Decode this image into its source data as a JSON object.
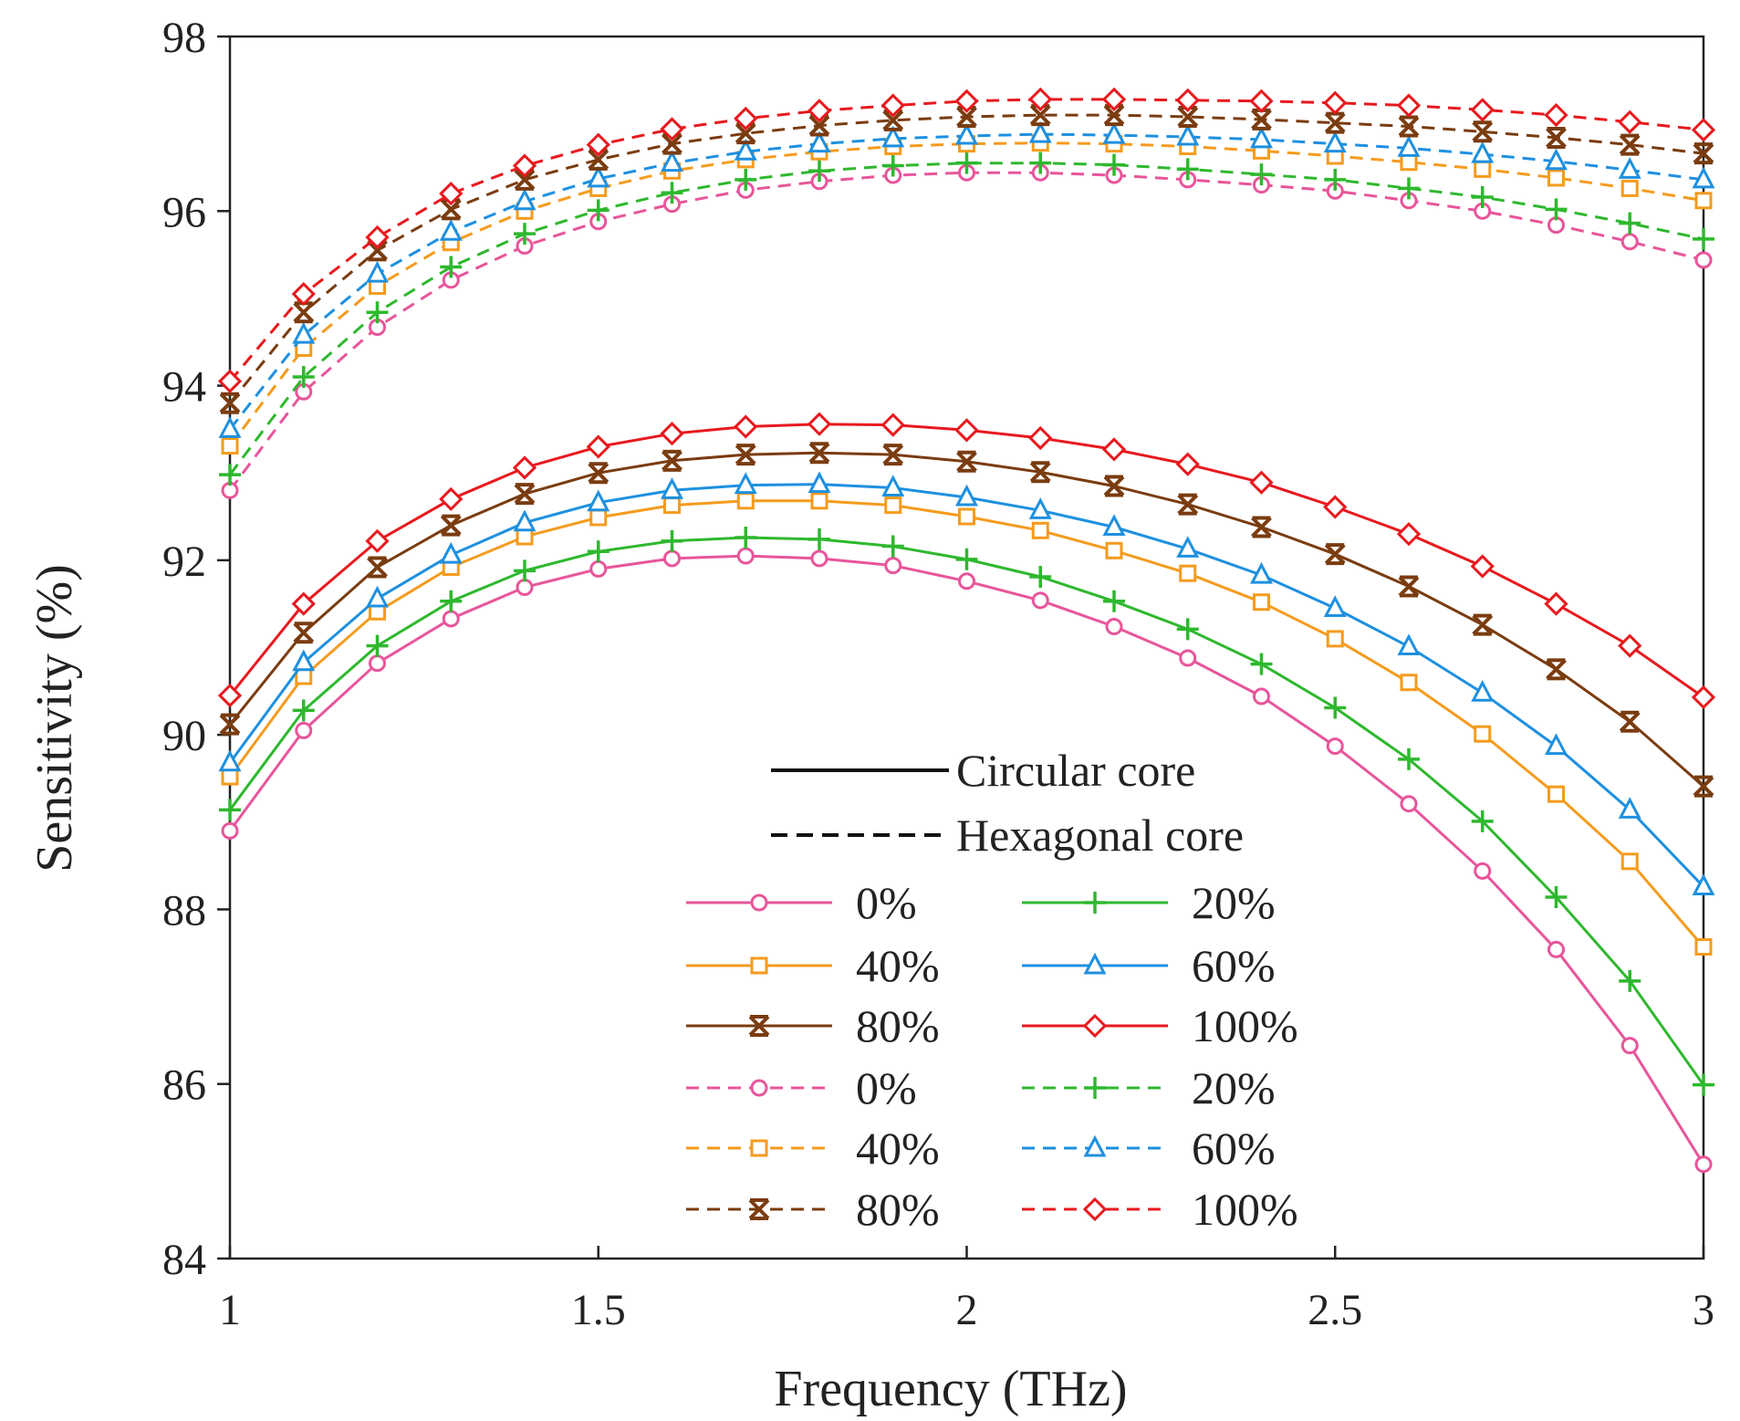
{
  "chart_data": {
    "type": "line",
    "title": "",
    "xlabel": "Frequency (THz)",
    "ylabel": "Sensitivity (%)",
    "xlim": [
      1,
      3
    ],
    "ylim": [
      84,
      98
    ],
    "xticks": [
      1,
      1.5,
      2,
      2.5,
      3
    ],
    "xtick_labels": [
      "1",
      "1.5",
      "2",
      "2.5",
      "3"
    ],
    "yticks": [
      84,
      86,
      88,
      90,
      92,
      94,
      96,
      98
    ],
    "ytick_labels": [
      "84",
      "86",
      "88",
      "90",
      "92",
      "94",
      "96",
      "98"
    ],
    "grid": false,
    "x": [
      1.0,
      1.1,
      1.2,
      1.3,
      1.4,
      1.5,
      1.6,
      1.7,
      1.8,
      1.9,
      2.0,
      2.1,
      2.2,
      2.3,
      2.4,
      2.5,
      2.6,
      2.7,
      2.8,
      2.9,
      3.0
    ],
    "legend": {
      "placement": "bottom-right",
      "style_entries": [
        {
          "label": "Circular core",
          "dash": "solid"
        },
        {
          "label": "Hexagonal core",
          "dash": "dashed"
        }
      ]
    },
    "series": [
      {
        "name": "0%",
        "core": "Circular core",
        "dash": "solid",
        "marker": "circle",
        "color": "#e8559a",
        "values": [
          88.9,
          90.05,
          90.82,
          91.33,
          91.69,
          91.9,
          92.02,
          92.05,
          92.02,
          91.94,
          91.76,
          91.54,
          91.24,
          90.88,
          90.44,
          89.87,
          89.21,
          88.44,
          87.54,
          86.44,
          85.08
        ]
      },
      {
        "name": "20%",
        "core": "Circular core",
        "dash": "solid",
        "marker": "plus",
        "color": "#2eb82e",
        "values": [
          89.14,
          90.28,
          91.02,
          91.53,
          91.88,
          92.1,
          92.22,
          92.26,
          92.24,
          92.16,
          92.01,
          91.81,
          91.53,
          91.21,
          90.81,
          90.31,
          89.72,
          89.01,
          88.14,
          87.18,
          85.99
        ]
      },
      {
        "name": "40%",
        "core": "Circular core",
        "dash": "solid",
        "marker": "square",
        "color": "#f59b1e",
        "values": [
          89.52,
          90.67,
          91.41,
          91.92,
          92.27,
          92.49,
          92.63,
          92.68,
          92.68,
          92.63,
          92.5,
          92.34,
          92.11,
          91.85,
          91.52,
          91.1,
          90.6,
          90.01,
          89.32,
          88.55,
          87.57
        ]
      },
      {
        "name": "60%",
        "core": "Circular core",
        "dash": "solid",
        "marker": "triangle",
        "color": "#1e90e0",
        "values": [
          89.68,
          90.83,
          91.56,
          92.06,
          92.43,
          92.66,
          92.8,
          92.86,
          92.87,
          92.83,
          92.72,
          92.57,
          92.38,
          92.13,
          91.83,
          91.45,
          91.01,
          90.48,
          89.87,
          89.14,
          88.26
        ]
      },
      {
        "name": "80%",
        "core": "Circular core",
        "dash": "solid",
        "marker": "star",
        "color": "#7a3c10",
        "values": [
          90.12,
          91.17,
          91.92,
          92.4,
          92.76,
          93.0,
          93.14,
          93.21,
          93.23,
          93.21,
          93.13,
          93.01,
          92.85,
          92.64,
          92.38,
          92.07,
          91.7,
          91.26,
          90.75,
          90.15,
          89.41
        ]
      },
      {
        "name": "100%",
        "core": "Circular core",
        "dash": "solid",
        "marker": "diamond",
        "color": "#e8191e",
        "values": [
          90.45,
          91.5,
          92.22,
          92.7,
          93.06,
          93.3,
          93.45,
          93.53,
          93.56,
          93.55,
          93.49,
          93.4,
          93.27,
          93.1,
          92.89,
          92.61,
          92.3,
          91.93,
          91.5,
          91.02,
          90.43
        ]
      },
      {
        "name": "0%",
        "core": "Hexagonal core",
        "dash": "dashed",
        "marker": "circle",
        "color": "#e8559a",
        "values": [
          92.8,
          93.93,
          94.67,
          95.21,
          95.6,
          95.88,
          96.08,
          96.24,
          96.34,
          96.41,
          96.44,
          96.44,
          96.41,
          96.36,
          96.3,
          96.23,
          96.12,
          96.0,
          95.84,
          95.65,
          95.44
        ]
      },
      {
        "name": "20%",
        "core": "Hexagonal core",
        "dash": "dashed",
        "marker": "plus",
        "color": "#2eb82e",
        "values": [
          92.98,
          94.1,
          94.84,
          95.36,
          95.74,
          96.01,
          96.21,
          96.36,
          96.46,
          96.52,
          96.55,
          96.55,
          96.53,
          96.48,
          96.42,
          96.36,
          96.26,
          96.16,
          96.02,
          95.86,
          95.68
        ]
      },
      {
        "name": "40%",
        "core": "Hexagonal core",
        "dash": "dashed",
        "marker": "square",
        "color": "#f59b1e",
        "values": [
          93.31,
          94.43,
          95.14,
          95.64,
          96.0,
          96.26,
          96.46,
          96.59,
          96.68,
          96.74,
          96.77,
          96.78,
          96.77,
          96.74,
          96.69,
          96.63,
          96.56,
          96.48,
          96.38,
          96.26,
          96.12
        ]
      },
      {
        "name": "60%",
        "core": "Hexagonal core",
        "dash": "dashed",
        "marker": "triangle",
        "color": "#1e90e0",
        "values": [
          93.5,
          94.58,
          95.28,
          95.76,
          96.11,
          96.37,
          96.55,
          96.68,
          96.77,
          96.83,
          96.86,
          96.88,
          96.87,
          96.85,
          96.82,
          96.77,
          96.72,
          96.65,
          96.57,
          96.47,
          96.36
        ]
      },
      {
        "name": "80%",
        "core": "Hexagonal core",
        "dash": "dashed",
        "marker": "star",
        "color": "#7a3c10",
        "values": [
          93.8,
          94.84,
          95.55,
          96.02,
          96.36,
          96.59,
          96.77,
          96.89,
          96.98,
          97.04,
          97.08,
          97.1,
          97.1,
          97.08,
          97.05,
          97.01,
          96.97,
          96.91,
          96.84,
          96.76,
          96.66
        ]
      },
      {
        "name": "100%",
        "core": "Hexagonal core",
        "dash": "dashed",
        "marker": "diamond",
        "color": "#e8191e",
        "values": [
          94.05,
          95.05,
          95.7,
          96.2,
          96.52,
          96.76,
          96.94,
          97.06,
          97.15,
          97.21,
          97.26,
          97.28,
          97.28,
          97.27,
          97.26,
          97.24,
          97.21,
          97.16,
          97.1,
          97.02,
          96.93
        ]
      }
    ]
  }
}
